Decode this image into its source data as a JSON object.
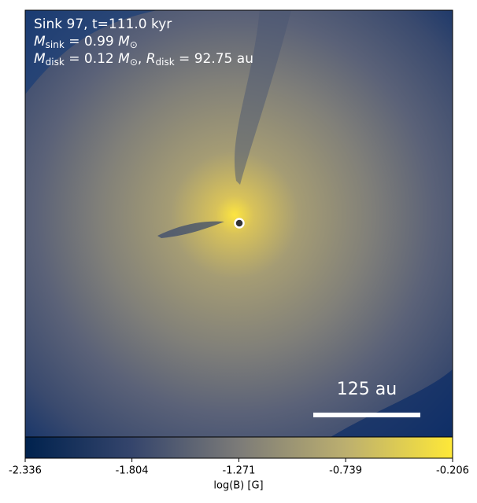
{
  "chart_data": {
    "type": "image",
    "annotations": [
      [
        {
          "text": "Sink 97, t=111.0 kyr"
        }
      ],
      [
        {
          "text": "M",
          "italic": true
        },
        {
          "text": "sink",
          "sub": true
        },
        {
          "text": " = 0.99 "
        },
        {
          "text": "M",
          "italic": true
        },
        {
          "text": "⊙",
          "sub": true
        }
      ],
      [
        {
          "text": "M",
          "italic": true
        },
        {
          "text": "disk",
          "sub": true
        },
        {
          "text": " = 0.12 "
        },
        {
          "text": "M",
          "italic": true
        },
        {
          "text": "⊙",
          "sub": true
        },
        {
          "text": ", "
        },
        {
          "text": "R",
          "italic": true
        },
        {
          "text": "disk",
          "sub": true
        },
        {
          "text": " = 92.75 au"
        }
      ]
    ],
    "scale_bar_label": "125 au",
    "colorbar": {
      "label": "log(B) [G]",
      "lim": [
        -2.336,
        -0.206
      ],
      "ticks": [
        -2.336,
        -1.804,
        -1.271,
        -0.739,
        -0.206
      ],
      "colors": [
        "#00224e",
        "#35456c",
        "#7c7b78",
        "#bcaf6f",
        "#fee838"
      ]
    }
  }
}
